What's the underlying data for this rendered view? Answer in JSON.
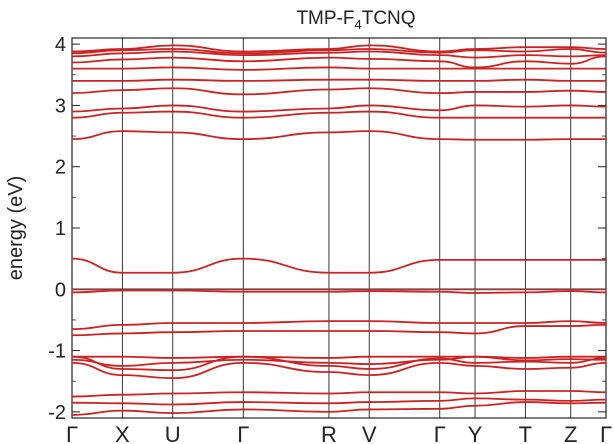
{
  "chart_data": {
    "type": "line",
    "title": {
      "prefix": "TMP-F",
      "subscript": "4",
      "suffix": "TCNQ"
    },
    "ylabel": "energy (eV)",
    "ylim": [
      -2.1,
      4.1
    ],
    "yticks": [
      -2,
      -1,
      0,
      1,
      2,
      3,
      4
    ],
    "ytick_labels": [
      "-2",
      "-1",
      "0",
      "1",
      "2",
      "3",
      "4"
    ],
    "reference_line": 0,
    "grid": false,
    "kpoints": [
      {
        "label": "Γ",
        "x": 0
      },
      {
        "label": "X",
        "x": 1
      },
      {
        "label": "U",
        "x": 2
      },
      {
        "label": "Γ",
        "x": 3.4
      },
      {
        "label": "R",
        "x": 5.1
      },
      {
        "label": "V",
        "x": 5.9
      },
      {
        "label": "Γ",
        "x": 7.3
      },
      {
        "label": "Y",
        "x": 8
      },
      {
        "label": "T",
        "x": 9
      },
      {
        "label": "Z",
        "x": 9.9
      },
      {
        "label": "Γ",
        "x": 10.6
      }
    ],
    "series_color": "#cc2222",
    "series": [
      {
        "values": [
          -2.05,
          -1.98,
          -2.02,
          -1.96,
          -2.0,
          -1.96,
          -1.95,
          -1.9,
          -1.84,
          -1.86,
          -1.85
        ]
      },
      {
        "values": [
          -1.85,
          -1.86,
          -1.88,
          -1.84,
          -1.86,
          -1.84,
          -1.82,
          -1.78,
          -1.8,
          -1.82,
          -1.8
        ]
      },
      {
        "values": [
          -1.75,
          -1.72,
          -1.7,
          -1.68,
          -1.7,
          -1.68,
          -1.68,
          -1.7,
          -1.66,
          -1.66,
          -1.68
        ]
      },
      {
        "values": [
          -1.2,
          -1.4,
          -1.45,
          -1.2,
          -1.35,
          -1.4,
          -1.2,
          -1.25,
          -1.3,
          -1.28,
          -1.2
        ]
      },
      {
        "values": [
          -1.1,
          -1.3,
          -1.32,
          -1.1,
          -1.25,
          -1.3,
          -1.13,
          -1.2,
          -1.18,
          -1.2,
          -1.12
        ]
      },
      {
        "values": [
          -1.15,
          -1.25,
          -1.2,
          -1.15,
          -1.2,
          -1.22,
          -1.15,
          -1.1,
          -1.16,
          -1.14,
          -1.15
        ]
      },
      {
        "values": [
          -1.1,
          -1.1,
          -1.12,
          -1.1,
          -1.12,
          -1.1,
          -1.1,
          -1.1,
          -1.12,
          -1.1,
          -1.1
        ]
      },
      {
        "values": [
          -0.75,
          -0.72,
          -0.7,
          -0.68,
          -0.68,
          -0.68,
          -0.7,
          -0.72,
          -0.6,
          -0.6,
          -0.58
        ]
      },
      {
        "values": [
          -0.65,
          -0.58,
          -0.55,
          -0.55,
          -0.52,
          -0.52,
          -0.55,
          -0.55,
          -0.55,
          -0.52,
          -0.55
        ]
      },
      {
        "values": [
          -0.05,
          -0.02,
          -0.02,
          -0.04,
          -0.04,
          -0.03,
          -0.04,
          -0.06,
          -0.05,
          -0.03,
          -0.05
        ]
      },
      {
        "values": [
          0.0,
          0.0,
          0.0,
          0.0,
          0.0,
          0.0,
          0.0,
          0.0,
          0.0,
          0.0,
          0.0
        ]
      },
      {
        "values": [
          0.5,
          0.27,
          0.27,
          0.5,
          0.27,
          0.27,
          0.48,
          0.48,
          0.48,
          0.48,
          0.48
        ]
      },
      {
        "values": [
          2.45,
          2.58,
          2.56,
          2.45,
          2.56,
          2.58,
          2.45,
          2.44,
          2.44,
          2.45,
          2.45
        ]
      },
      {
        "values": [
          2.8,
          2.88,
          2.9,
          2.8,
          2.88,
          2.9,
          2.8,
          2.8,
          2.8,
          2.8,
          2.8
        ]
      },
      {
        "values": [
          2.9,
          2.95,
          3.0,
          2.9,
          2.95,
          3.0,
          2.92,
          3.0,
          2.98,
          3.0,
          2.98
        ]
      },
      {
        "values": [
          3.2,
          3.25,
          3.28,
          3.18,
          3.26,
          3.28,
          3.2,
          3.22,
          3.22,
          3.24,
          3.22
        ]
      },
      {
        "values": [
          3.4,
          3.4,
          3.42,
          3.4,
          3.42,
          3.42,
          3.4,
          3.4,
          3.42,
          3.4,
          3.4
        ]
      },
      {
        "values": [
          3.6,
          3.6,
          3.62,
          3.58,
          3.62,
          3.6,
          3.6,
          3.6,
          3.6,
          3.6,
          3.6
        ]
      },
      {
        "values": [
          3.7,
          3.75,
          3.78,
          3.72,
          3.78,
          3.76,
          3.72,
          3.62,
          3.72,
          3.68,
          3.8
        ]
      },
      {
        "values": [
          3.8,
          3.85,
          3.88,
          3.82,
          3.86,
          3.88,
          3.82,
          3.78,
          3.82,
          3.8,
          3.82
        ]
      },
      {
        "values": [
          3.85,
          3.9,
          3.92,
          3.85,
          3.9,
          3.92,
          3.86,
          3.9,
          3.88,
          3.92,
          3.86
        ]
      },
      {
        "values": [
          3.88,
          3.92,
          3.98,
          3.88,
          3.92,
          3.98,
          3.88,
          3.92,
          3.95,
          3.95,
          3.92
        ]
      }
    ]
  }
}
